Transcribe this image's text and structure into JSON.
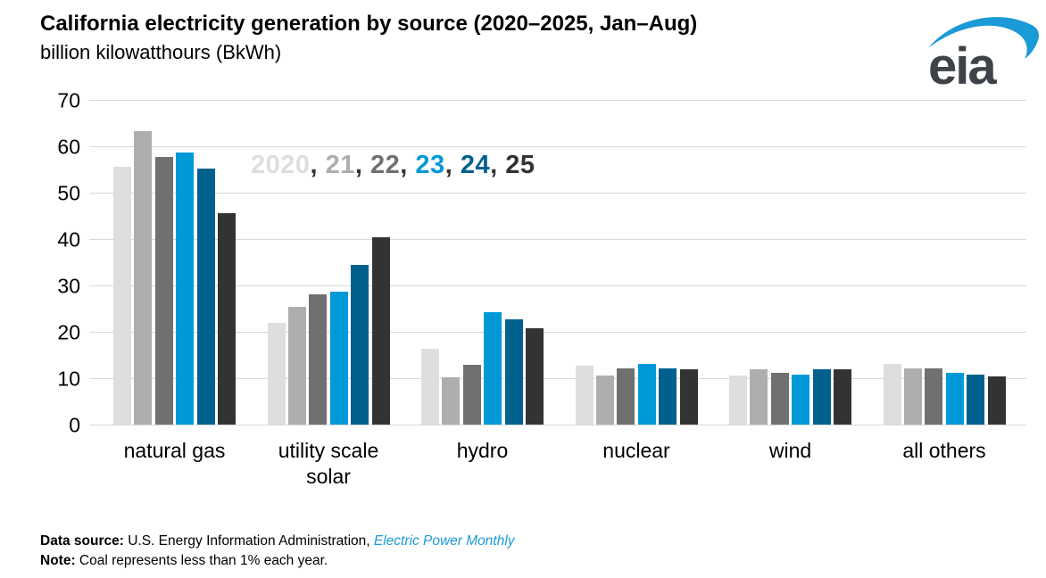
{
  "header": {
    "logo_text": "eia"
  },
  "legend": {
    "separator": ", ",
    "separator_color": "#333333",
    "items": [
      {
        "label": "2020",
        "color": "#dedede"
      },
      {
        "label": "21",
        "color": "#aeaeae"
      },
      {
        "label": "22",
        "color": "#707070"
      },
      {
        "label": "23",
        "color": "#0099d8"
      },
      {
        "label": "24",
        "color": "#00618f"
      },
      {
        "label": "25",
        "color": "#333333"
      }
    ]
  },
  "chart_data": {
    "type": "bar",
    "title": "California electricity generation by source (2020–2025, Jan–Aug)",
    "ylabel": "billion kilowatthours (BkWh)",
    "categories": [
      "natural gas",
      "utility scale solar",
      "hydro",
      "nuclear",
      "wind",
      "all others"
    ],
    "series": [
      {
        "name": "2020",
        "color": "#dedede",
        "values": [
          55.5,
          22.0,
          16.3,
          12.6,
          10.5,
          13.1
        ]
      },
      {
        "name": "21",
        "color": "#aeaeae",
        "values": [
          63.3,
          25.4,
          10.2,
          10.6,
          11.9,
          12.2
        ]
      },
      {
        "name": "22",
        "color": "#707070",
        "values": [
          57.7,
          28.0,
          12.9,
          12.1,
          11.1,
          12.2
        ]
      },
      {
        "name": "23",
        "color": "#0099d8",
        "values": [
          58.6,
          28.6,
          24.3,
          13.0,
          10.8,
          11.1
        ]
      },
      {
        "name": "24",
        "color": "#00618f",
        "values": [
          55.1,
          34.5,
          22.7,
          12.1,
          12.0,
          10.7
        ]
      },
      {
        "name": "25",
        "color": "#333333",
        "values": [
          45.5,
          40.3,
          20.7,
          11.9,
          11.9,
          10.4
        ]
      }
    ],
    "ylim": [
      0,
      70
    ],
    "ytick_step": 10,
    "grid": true,
    "legend_position": "inline-top",
    "colors": {
      "gridline": "#d9d9d9",
      "accent_blue": "#1a9ad7",
      "logo_text": "#3e4349"
    }
  },
  "footer": {
    "source_label": "Data source:",
    "source_text": " U.S. Energy Information Administration, ",
    "source_link": "Electric Power Monthly",
    "note_label": "Note:",
    "note_text": " Coal represents less than 1% each year."
  }
}
